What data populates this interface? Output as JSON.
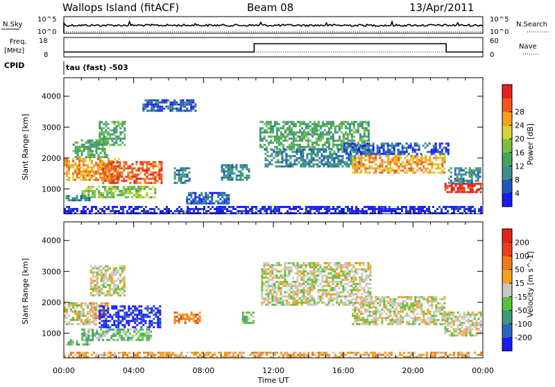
{
  "header": {
    "station": "Wallops Island (fitACF)",
    "beam": "Beam 08",
    "date": "13/Apr/2011"
  },
  "strips": {
    "nsky": {
      "label": "N.Sky",
      "left_ticks": [
        "10^5",
        "10^0"
      ],
      "right_ticks": [
        "10^5",
        "10^0"
      ],
      "right_label": "N.Search"
    },
    "freq": {
      "label_line1": "Freq.",
      "label_line2": "[MHz]",
      "left_ticks": [
        "18",
        "8"
      ],
      "right_ticks": [
        "60",
        "0"
      ],
      "right_label": "Nave",
      "step_start_h": 10.9,
      "step_end_h": 21.9
    },
    "cpid": {
      "label": "CPID",
      "text": "tau (fast) -503"
    }
  },
  "chart_data": [
    {
      "type": "heatmap",
      "name_shown": "Power",
      "ylabel": "Slant Range [km]",
      "xlabel": "Time UT",
      "x_ticks": [
        "00:00",
        "04:00",
        "08:00",
        "12:00",
        "16:00",
        "20:00",
        "00:00"
      ],
      "x_range_h": [
        0,
        24
      ],
      "y_ticks": [
        "1000",
        "2000",
        "3000",
        "4000"
      ],
      "y_range_km": [
        200,
        4600
      ],
      "colorbar": {
        "label": "Power [dB]",
        "ticks": [
          "4",
          "8",
          "12",
          "16",
          "20",
          "24",
          "28"
        ],
        "colors": [
          "#1a1aff",
          "#2255c0",
          "#3a8f8a",
          "#46a45a",
          "#7cc043",
          "#d8d23a",
          "#f5a020",
          "#ef5a1c",
          "#e8201c"
        ]
      },
      "regions": [
        {
          "t0": 0.0,
          "t1": 3.2,
          "r0": 1300,
          "r1": 2000,
          "level": 6
        },
        {
          "t0": 0.5,
          "t1": 2.5,
          "r0": 2000,
          "r1": 2600,
          "level": 3
        },
        {
          "t0": 2.0,
          "t1": 3.5,
          "r0": 2400,
          "r1": 3200,
          "level": 3
        },
        {
          "t0": 2.2,
          "t1": 5.6,
          "r0": 1200,
          "r1": 1900,
          "level": 7
        },
        {
          "t0": 1.0,
          "t1": 5.2,
          "r0": 750,
          "r1": 1100,
          "level": 4
        },
        {
          "t0": 0.1,
          "t1": 1.5,
          "r0": 600,
          "r1": 800,
          "level": 2
        },
        {
          "t0": 6.3,
          "t1": 7.2,
          "r0": 1200,
          "r1": 1700,
          "level": 2
        },
        {
          "t0": 7.0,
          "t1": 9.5,
          "r0": 500,
          "r1": 900,
          "level": 1
        },
        {
          "t0": 4.5,
          "t1": 7.5,
          "r0": 3500,
          "r1": 3900,
          "level": 1
        },
        {
          "t0": 9.0,
          "t1": 10.6,
          "r0": 1300,
          "r1": 1800,
          "level": 2
        },
        {
          "t0": 11.2,
          "t1": 17.5,
          "r0": 2300,
          "r1": 3200,
          "level": 3
        },
        {
          "t0": 11.5,
          "t1": 17.0,
          "r0": 1700,
          "r1": 2300,
          "level": 2
        },
        {
          "t0": 16.5,
          "t1": 21.8,
          "r0": 1500,
          "r1": 2100,
          "level": 6
        },
        {
          "t0": 16.0,
          "t1": 22.0,
          "r0": 2100,
          "r1": 2500,
          "level": 1
        },
        {
          "t0": 21.8,
          "t1": 23.9,
          "r0": 900,
          "r1": 1200,
          "level": 8
        },
        {
          "t0": 22.0,
          "t1": 23.9,
          "r0": 1200,
          "r1": 1700,
          "level": 2
        },
        {
          "t0": 0.0,
          "t1": 23.9,
          "r0": 200,
          "r1": 450,
          "level": 0
        }
      ]
    },
    {
      "type": "heatmap",
      "name_shown": "Velocity",
      "ylabel": "Slant Range [km]",
      "xlabel": "Time UT",
      "x_ticks": [
        "00:00",
        "04:00",
        "08:00",
        "12:00",
        "16:00",
        "20:00",
        "00:00"
      ],
      "x_range_h": [
        0,
        24
      ],
      "y_ticks": [
        "1000",
        "2000",
        "3000",
        "4000"
      ],
      "y_range_km": [
        200,
        4600
      ],
      "colorbar": {
        "label": "Velocity [m s^-1]",
        "ticks": [
          "200",
          "100",
          "50",
          "15",
          "-15",
          "-50",
          "-100",
          "-200"
        ],
        "colors": [
          "#1a1aff",
          "#2f62bf",
          "#3a9a78",
          "#5cc13a",
          "#c8c8c4",
          "#f5a020",
          "#ef7a1c",
          "#e8401c",
          "#e8201c"
        ]
      },
      "regions": [
        {
          "t0": 0.0,
          "t1": 1.8,
          "r0": 1300,
          "r1": 2000,
          "level": 4
        },
        {
          "t0": 1.5,
          "t1": 2.5,
          "r0": 1500,
          "r1": 2000,
          "level": 5
        },
        {
          "t0": 2.0,
          "t1": 5.5,
          "r0": 1200,
          "r1": 1900,
          "level": 0
        },
        {
          "t0": 1.0,
          "t1": 5.0,
          "r0": 750,
          "r1": 1150,
          "level": 3
        },
        {
          "t0": 0.1,
          "t1": 1.5,
          "r0": 600,
          "r1": 800,
          "level": 3
        },
        {
          "t0": 6.3,
          "t1": 7.8,
          "r0": 1300,
          "r1": 1700,
          "level": 6
        },
        {
          "t0": 1.5,
          "t1": 3.5,
          "r0": 2200,
          "r1": 3200,
          "level": 4
        },
        {
          "t0": 11.3,
          "t1": 17.5,
          "r0": 1900,
          "r1": 3300,
          "level": 4
        },
        {
          "t0": 16.5,
          "t1": 21.8,
          "r0": 1300,
          "r1": 2200,
          "level": 4
        },
        {
          "t0": 21.8,
          "t1": 23.9,
          "r0": 900,
          "r1": 1700,
          "level": 4
        },
        {
          "t0": 10.2,
          "t1": 10.8,
          "r0": 1300,
          "r1": 1700,
          "level": 3
        },
        {
          "t0": 0.0,
          "t1": 23.9,
          "r0": 200,
          "r1": 400,
          "level": 5
        }
      ]
    }
  ]
}
